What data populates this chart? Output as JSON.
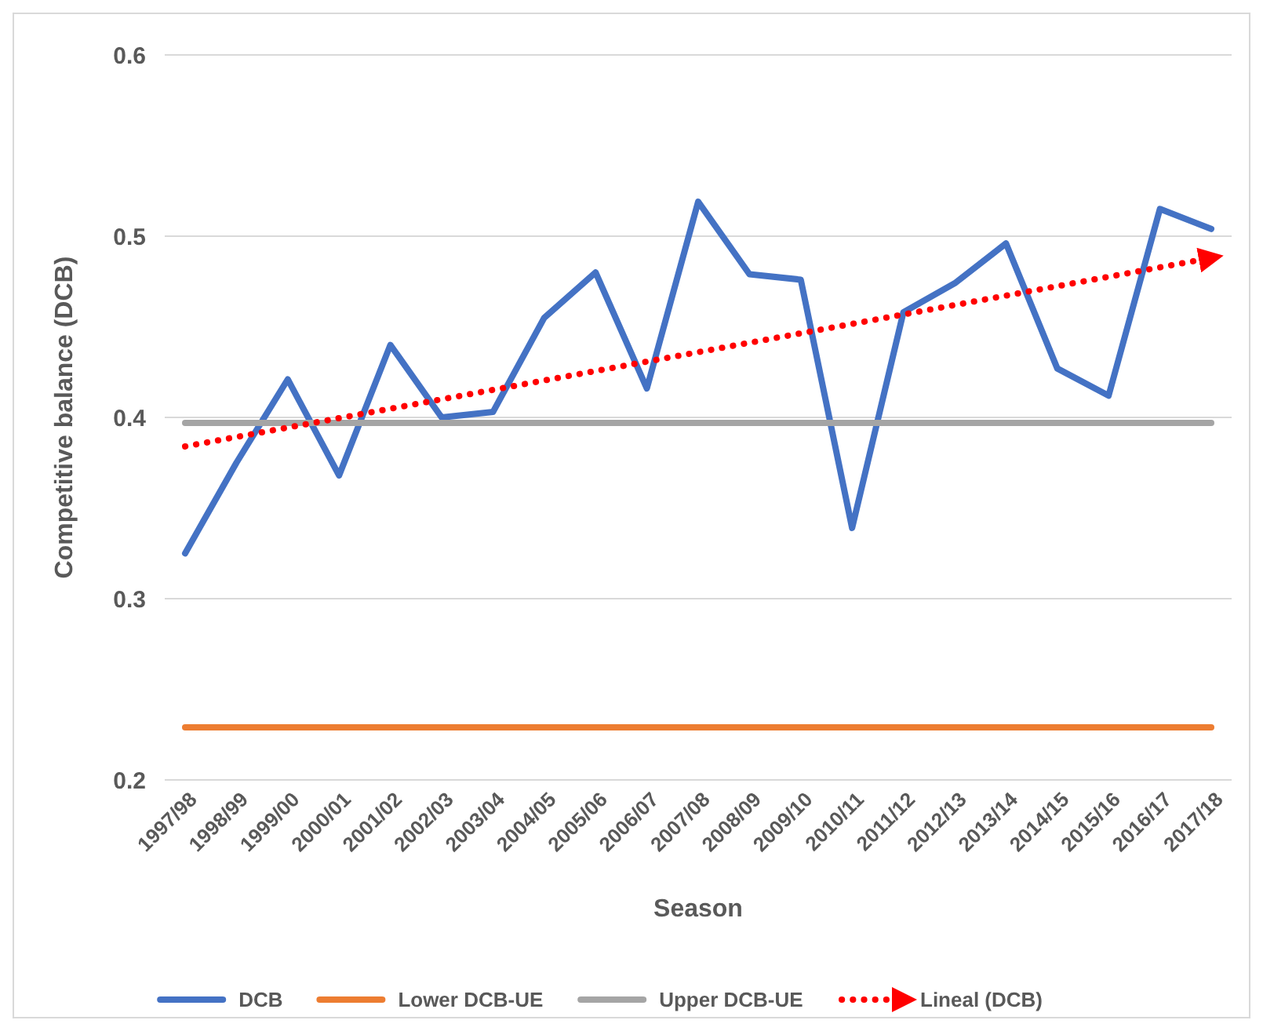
{
  "chart_data": {
    "type": "line",
    "xlabel": "Season",
    "ylabel": "Competitive balance (DCB)",
    "categories": [
      "1997/98",
      "1998/99",
      "1999/00",
      "2000/01",
      "2001/02",
      "2002/03",
      "2003/04",
      "2004/05",
      "2005/06",
      "2006/07",
      "2007/08",
      "2008/09",
      "2009/10",
      "2010/11",
      "2011/12",
      "2012/13",
      "2013/14",
      "2014/15",
      "2015/16",
      "2016/17",
      "2017/18"
    ],
    "series": [
      {
        "name": "DCB",
        "color": "#4472c4",
        "values": [
          0.325,
          0.375,
          0.421,
          0.368,
          0.44,
          0.4,
          0.403,
          0.455,
          0.48,
          0.416,
          0.519,
          0.479,
          0.476,
          0.339,
          0.458,
          0.474,
          0.496,
          0.427,
          0.412,
          0.515,
          0.504
        ]
      },
      {
        "name": "Lower DCB-UE",
        "color": "#ed7d31",
        "values": [
          0.229,
          0.229,
          0.229,
          0.229,
          0.229,
          0.229,
          0.229,
          0.229,
          0.229,
          0.229,
          0.229,
          0.229,
          0.229,
          0.229,
          0.229,
          0.229,
          0.229,
          0.229,
          0.229,
          0.229,
          0.229
        ]
      },
      {
        "name": "Upper DCB-UE",
        "color": "#a5a5a5",
        "values": [
          0.397,
          0.397,
          0.397,
          0.397,
          0.397,
          0.397,
          0.397,
          0.397,
          0.397,
          0.397,
          0.397,
          0.397,
          0.397,
          0.397,
          0.397,
          0.397,
          0.397,
          0.397,
          0.397,
          0.397,
          0.397
        ]
      },
      {
        "name": "Lineal (DCB)",
        "color": "#ff0000",
        "line_style": "dotted",
        "values": [
          0.384,
          0.3892,
          0.3944,
          0.3996,
          0.4048,
          0.41,
          0.4152,
          0.4204,
          0.4256,
          0.4308,
          0.436,
          0.4412,
          0.4464,
          0.4516,
          0.4568,
          0.462,
          0.4672,
          0.4724,
          0.4776,
          0.4828,
          0.488
        ]
      }
    ],
    "ylim": [
      0.2,
      0.6
    ],
    "yticks": [
      0.2,
      0.3,
      0.4,
      0.5,
      0.6
    ],
    "grid": "y",
    "legend": "bottom"
  }
}
